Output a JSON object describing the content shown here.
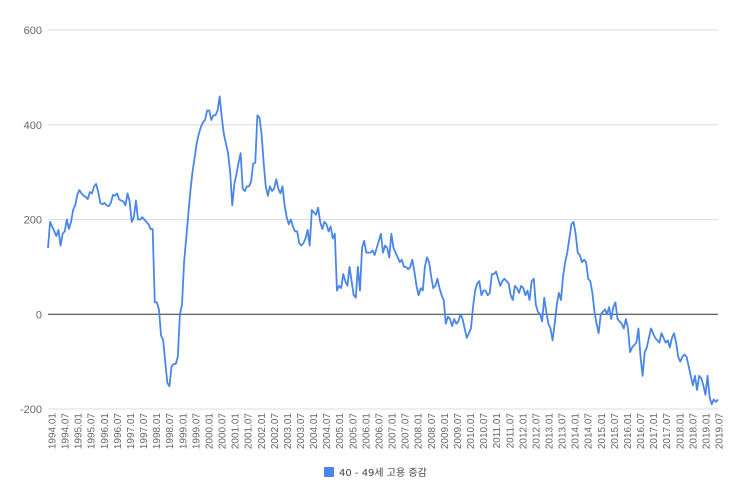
{
  "chart_data": {
    "type": "line",
    "title": "",
    "xlabel": "",
    "ylabel": "",
    "ylim": [
      -200,
      600
    ],
    "yticks": [
      600,
      400,
      200,
      0,
      -200
    ],
    "x_tick_labels": [
      "1994.01",
      "1994.07",
      "1995.01",
      "1995.07",
      "1996.01",
      "1996.07",
      "1997.01",
      "1997.07",
      "1998.01",
      "1998.07",
      "1999.01",
      "1999.07",
      "2000.01",
      "2000.07",
      "2001.01",
      "2001.07",
      "2002.01",
      "2002.07",
      "2003.01",
      "2003.07",
      "2004.01",
      "2004.07",
      "2005.01",
      "2005.07",
      "2006.01",
      "2006.07",
      "2007.01",
      "2007.07",
      "2008.01",
      "2008.07",
      "2009.01",
      "2009.07",
      "2010.01",
      "2010.07",
      "2011.01",
      "2011.07",
      "2012.01",
      "2012.07",
      "2013.01",
      "2013.07",
      "2014.01",
      "2014.07",
      "2015.01",
      "2015.07",
      "2016.01",
      "2016.07",
      "2017.01",
      "2017.07",
      "2018.01",
      "2018.07",
      "2019.01",
      "2019.07"
    ],
    "grid": true,
    "legend_position": "bottom",
    "series": [
      {
        "name": "40 - 49세 고용 증감",
        "color": "#4a86e8",
        "values": [
          140,
          195,
          185,
          175,
          165,
          178,
          145,
          170,
          175,
          200,
          180,
          195,
          220,
          230,
          252,
          262,
          255,
          250,
          248,
          243,
          258,
          255,
          270,
          275,
          258,
          235,
          232,
          235,
          230,
          228,
          235,
          252,
          250,
          255,
          242,
          240,
          238,
          230,
          255,
          238,
          195,
          205,
          240,
          200,
          200,
          205,
          200,
          195,
          190,
          180,
          180,
          25,
          25,
          10,
          -45,
          -55,
          -100,
          -145,
          -152,
          -110,
          -105,
          -105,
          -90,
          0,
          20,
          110,
          160,
          210,
          260,
          300,
          330,
          360,
          380,
          395,
          405,
          410,
          430,
          430,
          410,
          420,
          420,
          430,
          460,
          415,
          380,
          360,
          340,
          300,
          230,
          275,
          295,
          320,
          340,
          265,
          260,
          270,
          270,
          280,
          318,
          320,
          420,
          415,
          380,
          320,
          270,
          250,
          270,
          260,
          265,
          285,
          265,
          255,
          270,
          230,
          205,
          190,
          200,
          185,
          175,
          175,
          150,
          145,
          150,
          160,
          178,
          145,
          220,
          215,
          210,
          225,
          195,
          180,
          195,
          190,
          175,
          185,
          160,
          170,
          50,
          60,
          55,
          85,
          70,
          60,
          100,
          70,
          40,
          35,
          100,
          50,
          140,
          155,
          130,
          130,
          130,
          135,
          125,
          140,
          155,
          170,
          130,
          145,
          140,
          120,
          170,
          140,
          130,
          120,
          110,
          115,
          100,
          100,
          95,
          100,
          115,
          90,
          60,
          40,
          55,
          50,
          100,
          120,
          110,
          80,
          55,
          60,
          75,
          55,
          40,
          30,
          -20,
          -5,
          -10,
          -25,
          -10,
          -20,
          -15,
          0,
          -10,
          -30,
          -50,
          -40,
          -30,
          15,
          50,
          65,
          70,
          40,
          50,
          50,
          40,
          45,
          85,
          85,
          90,
          75,
          60,
          70,
          75,
          70,
          65,
          40,
          30,
          60,
          55,
          45,
          60,
          55,
          40,
          50,
          30,
          70,
          75,
          20,
          5,
          0,
          -15,
          35,
          5,
          -20,
          -30,
          -55,
          -20,
          20,
          45,
          30,
          80,
          110,
          130,
          160,
          190,
          195,
          170,
          130,
          125,
          110,
          115,
          110,
          75,
          70,
          45,
          5,
          -20,
          -40,
          0,
          5,
          10,
          0,
          15,
          -10,
          15,
          25,
          -10,
          -15,
          -20,
          -30,
          -10,
          -30,
          -80,
          -70,
          -65,
          -60,
          -30,
          -90,
          -130,
          -80,
          -70,
          -50,
          -30,
          -40,
          -50,
          -55,
          -60,
          -40,
          -50,
          -60,
          -55,
          -70,
          -50,
          -40,
          -60,
          -90,
          -100,
          -90,
          -85,
          -90,
          -110,
          -130,
          -150,
          -130,
          -160,
          -130,
          -135,
          -150,
          -170,
          -130,
          -175,
          -190,
          -180,
          -185,
          -180
        ]
      }
    ]
  }
}
